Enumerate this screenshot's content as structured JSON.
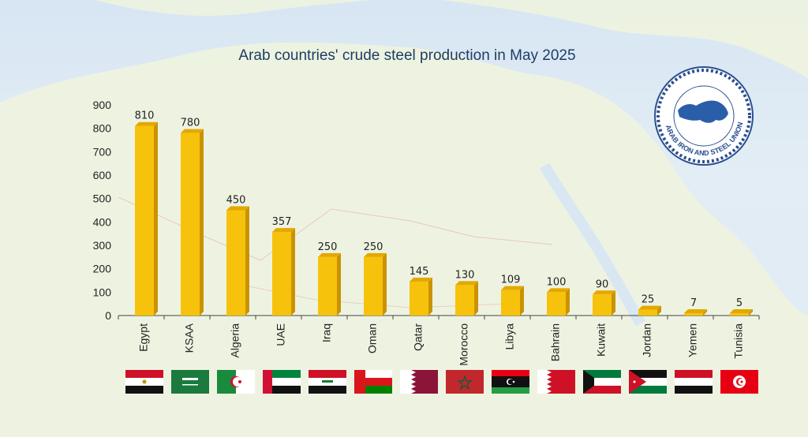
{
  "chart_data": {
    "type": "bar",
    "title": "Arab countries' crude steel production in May 2025",
    "categories": [
      "Egypt",
      "KSAA",
      "Algeria",
      "UAE",
      "Iraq",
      "Oman",
      "Qatar",
      "Morocco",
      "Libya",
      "Bahrain",
      "Kuwait",
      "Jordan",
      "Yemen",
      "Tunisia"
    ],
    "values": [
      810,
      780,
      450,
      357,
      250,
      250,
      145,
      130,
      109,
      100,
      90,
      25,
      7,
      5
    ],
    "ylim": [
      0,
      900
    ],
    "yticks": [
      0,
      100,
      200,
      300,
      400,
      500,
      600,
      700,
      800,
      900
    ],
    "bar_color": "#f7c20c",
    "grid": false
  },
  "flags": [
    "egypt-flag",
    "saudi-arabia-flag",
    "algeria-flag",
    "uae-flag",
    "iraq-flag",
    "oman-flag",
    "qatar-flag",
    "morocco-flag",
    "libya-flag",
    "bahrain-flag",
    "kuwait-flag",
    "jordan-flag",
    "yemen-flag",
    "tunisia-flag"
  ],
  "logo": {
    "text": "ARAB IRON AND STEEL UNION",
    "icon": "arab-world-map-icon"
  }
}
